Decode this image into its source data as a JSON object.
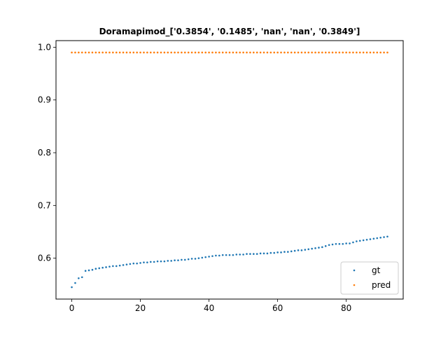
{
  "chart_data": {
    "type": "scatter",
    "title": "Doramapimod_['0.3854', '0.1485', 'nan', 'nan', '0.3849']",
    "xlabel": "",
    "ylabel": "",
    "xlim": [
      -4.6,
      96.6
    ],
    "ylim": [
      0.5225,
      1.0125
    ],
    "xticks": [
      0,
      20,
      40,
      60,
      80
    ],
    "xtick_labels": [
      "0",
      "20",
      "40",
      "60",
      "80"
    ],
    "yticks": [
      0.6,
      0.7,
      0.8,
      0.9,
      1.0
    ],
    "ytick_labels": [
      "0.6",
      "0.7",
      "0.8",
      "0.9",
      "1.0"
    ],
    "grid": false,
    "legend": "lower-right",
    "series": [
      {
        "name": "gt",
        "color": "#1f77b4",
        "x": [
          0,
          1,
          2,
          3,
          4,
          5,
          6,
          7,
          8,
          9,
          10,
          11,
          12,
          13,
          14,
          15,
          16,
          17,
          18,
          19,
          20,
          21,
          22,
          23,
          24,
          25,
          26,
          27,
          28,
          29,
          30,
          31,
          32,
          33,
          34,
          35,
          36,
          37,
          38,
          39,
          40,
          41,
          42,
          43,
          44,
          45,
          46,
          47,
          48,
          49,
          50,
          51,
          52,
          53,
          54,
          55,
          56,
          57,
          58,
          59,
          60,
          61,
          62,
          63,
          64,
          65,
          66,
          67,
          68,
          69,
          70,
          71,
          72,
          73,
          74,
          75,
          76,
          77,
          78,
          79,
          80,
          81,
          82,
          83,
          84,
          85,
          86,
          87,
          88,
          89,
          90,
          91,
          92
        ],
        "y": [
          0.545,
          0.553,
          0.562,
          0.564,
          0.576,
          0.577,
          0.578,
          0.58,
          0.581,
          0.582,
          0.583,
          0.584,
          0.585,
          0.585,
          0.586,
          0.587,
          0.588,
          0.589,
          0.59,
          0.59,
          0.591,
          0.592,
          0.592,
          0.593,
          0.593,
          0.594,
          0.594,
          0.594,
          0.595,
          0.595,
          0.596,
          0.596,
          0.597,
          0.597,
          0.598,
          0.599,
          0.599,
          0.6,
          0.601,
          0.602,
          0.603,
          0.604,
          0.605,
          0.605,
          0.606,
          0.606,
          0.606,
          0.606,
          0.607,
          0.607,
          0.607,
          0.608,
          0.608,
          0.608,
          0.608,
          0.609,
          0.609,
          0.609,
          0.61,
          0.61,
          0.611,
          0.611,
          0.612,
          0.612,
          0.613,
          0.614,
          0.615,
          0.615,
          0.616,
          0.617,
          0.618,
          0.619,
          0.62,
          0.621,
          0.623,
          0.625,
          0.626,
          0.627,
          0.627,
          0.627,
          0.628,
          0.628,
          0.63,
          0.632,
          0.633,
          0.634,
          0.635,
          0.636,
          0.637,
          0.638,
          0.639,
          0.64,
          0.641
        ]
      },
      {
        "name": "pred",
        "color": "#ff7f0e",
        "x": [
          0,
          1,
          2,
          3,
          4,
          5,
          6,
          7,
          8,
          9,
          10,
          11,
          12,
          13,
          14,
          15,
          16,
          17,
          18,
          19,
          20,
          21,
          22,
          23,
          24,
          25,
          26,
          27,
          28,
          29,
          30,
          31,
          32,
          33,
          34,
          35,
          36,
          37,
          38,
          39,
          40,
          41,
          42,
          43,
          44,
          45,
          46,
          47,
          48,
          49,
          50,
          51,
          52,
          53,
          54,
          55,
          56,
          57,
          58,
          59,
          60,
          61,
          62,
          63,
          64,
          65,
          66,
          67,
          68,
          69,
          70,
          71,
          72,
          73,
          74,
          75,
          76,
          77,
          78,
          79,
          80,
          81,
          82,
          83,
          84,
          85,
          86,
          87,
          88,
          89,
          90,
          91,
          92
        ],
        "y": [
          0.99,
          0.99,
          0.99,
          0.99,
          0.99,
          0.99,
          0.99,
          0.99,
          0.99,
          0.99,
          0.99,
          0.99,
          0.99,
          0.99,
          0.99,
          0.99,
          0.99,
          0.99,
          0.99,
          0.99,
          0.99,
          0.99,
          0.99,
          0.99,
          0.99,
          0.99,
          0.99,
          0.99,
          0.99,
          0.99,
          0.99,
          0.99,
          0.99,
          0.99,
          0.99,
          0.99,
          0.99,
          0.99,
          0.99,
          0.99,
          0.99,
          0.99,
          0.99,
          0.99,
          0.99,
          0.99,
          0.99,
          0.99,
          0.99,
          0.99,
          0.99,
          0.99,
          0.99,
          0.99,
          0.99,
          0.99,
          0.99,
          0.99,
          0.99,
          0.99,
          0.99,
          0.99,
          0.99,
          0.99,
          0.99,
          0.99,
          0.99,
          0.99,
          0.99,
          0.99,
          0.99,
          0.99,
          0.99,
          0.99,
          0.99,
          0.99,
          0.99,
          0.99,
          0.99,
          0.99,
          0.99,
          0.99,
          0.99,
          0.99,
          0.99,
          0.99,
          0.99,
          0.99,
          0.99,
          0.99,
          0.99,
          0.99,
          0.99
        ]
      }
    ]
  }
}
